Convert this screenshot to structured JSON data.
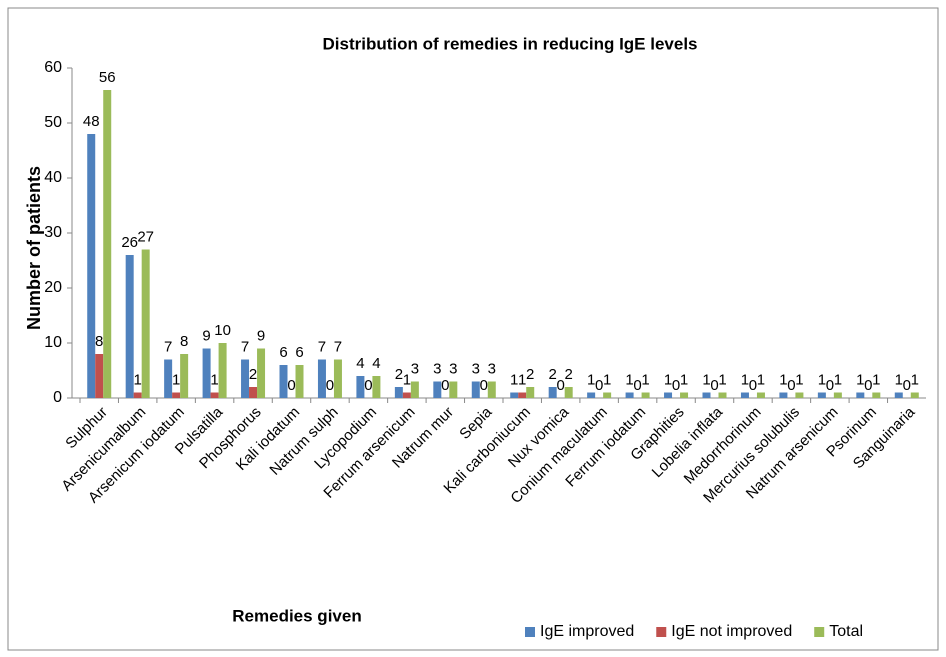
{
  "chart_data": {
    "type": "bar",
    "title": "Distribution  of remedies in reducing IgE levels",
    "x_label": "Remedies given",
    "y_label": "Number of patients",
    "categories": [
      "Sulphur",
      "Arsenicumalbum",
      "Arsenicum iodatum",
      "Pulsatilla",
      "Phosphorus",
      "Kali iodatum",
      "Natrum sulph",
      "Lycopodium",
      "Ferrum arsenicum",
      "Natrum mur",
      "Sepia",
      "Kali carboniucum",
      "Nux vomica",
      "Conium maculatum",
      "Ferrum iodatum",
      "Graphities",
      "Lobelia inflata",
      "Medorrhorinum",
      "Mercurius solubulis",
      "Natrum arsenicum",
      "Psorinum",
      "Sanguinaria"
    ],
    "series": [
      {
        "name": "IgE improved",
        "color": "#4f81bd",
        "values": [
          48,
          26,
          7,
          9,
          7,
          6,
          7,
          4,
          2,
          3,
          3,
          1,
          2,
          1,
          1,
          1,
          1,
          1,
          1,
          1,
          1,
          1
        ]
      },
      {
        "name": "IgE not improved",
        "color": "#c0504d",
        "values": [
          8,
          1,
          1,
          1,
          2,
          0,
          0,
          0,
          1,
          0,
          0,
          1,
          0,
          0,
          0,
          0,
          0,
          0,
          0,
          0,
          0,
          0
        ]
      },
      {
        "name": "Total",
        "color": "#9bbb59",
        "values": [
          56,
          27,
          8,
          10,
          9,
          6,
          7,
          4,
          3,
          3,
          3,
          2,
          2,
          1,
          1,
          1,
          1,
          1,
          1,
          1,
          1,
          1
        ]
      }
    ],
    "ylim": [
      0,
      60
    ],
    "yticks": [
      0,
      10,
      20,
      30,
      40,
      50,
      60
    ],
    "grid": false,
    "legend": "bottom-right"
  }
}
